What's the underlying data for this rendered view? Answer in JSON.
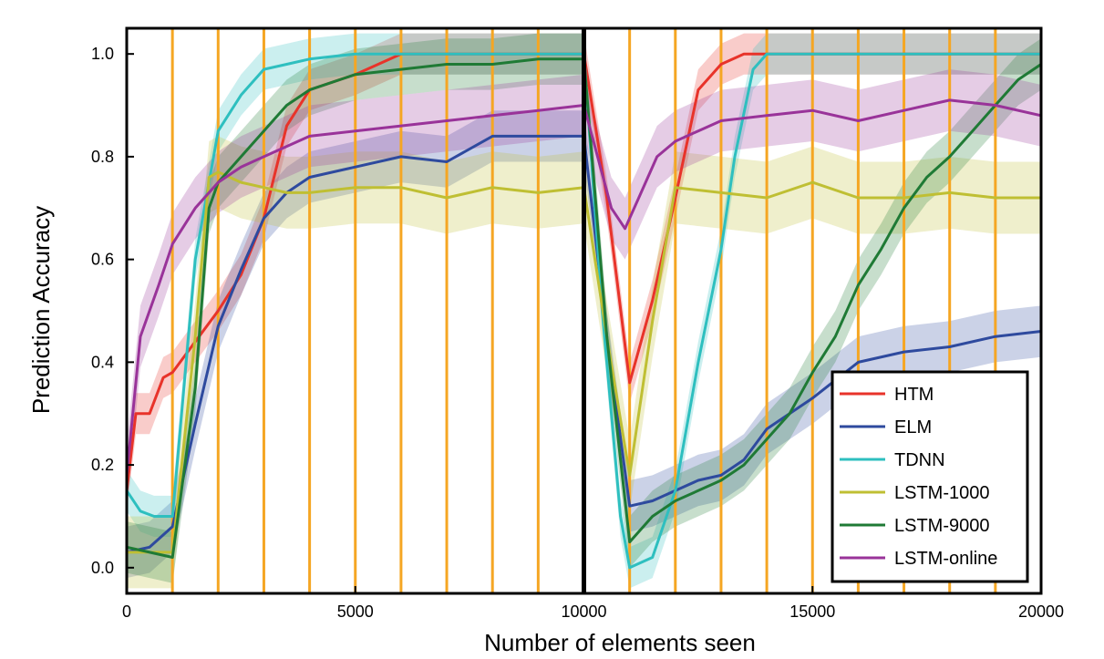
{
  "chart_data": {
    "type": "line",
    "title": "",
    "xlabel": "Number of elements seen",
    "ylabel": "Prediction Accuracy",
    "xlim": [
      0,
      20000
    ],
    "ylim": [
      -0.05,
      1.05
    ],
    "x_ticks": [
      "0",
      "5000",
      "10000",
      "15000",
      "20000"
    ],
    "y_ticks": [
      "0.0",
      "0.2",
      "0.4",
      "0.6",
      "0.8",
      "1.0"
    ],
    "grid": false,
    "legend_position": "lower-right",
    "vertical_markers": [
      1000,
      2000,
      3000,
      4000,
      5000,
      6000,
      7000,
      8000,
      9000,
      11000,
      12000,
      13000,
      14000,
      15000,
      16000,
      17000,
      18000,
      19000
    ],
    "vertical_marker_color": "#f5a623",
    "divider_x": 10000,
    "series": [
      {
        "name": "HTM",
        "color": "#e8332a",
        "x": [
          0,
          200,
          500,
          800,
          1000,
          1500,
          2000,
          2500,
          3000,
          3500,
          4000,
          5000,
          6000,
          7000,
          8000,
          9000,
          10000,
          10500,
          11000,
          11500,
          12000,
          12500,
          13000,
          13500,
          14000,
          15000,
          16000,
          17000,
          18000,
          19000,
          20000
        ],
        "values": [
          0.15,
          0.3,
          0.3,
          0.37,
          0.38,
          0.44,
          0.5,
          0.57,
          0.68,
          0.86,
          0.93,
          0.96,
          1.0,
          1.0,
          1.0,
          1.0,
          1.0,
          0.72,
          0.36,
          0.52,
          0.72,
          0.93,
          0.98,
          1.0,
          1.0,
          1.0,
          1.0,
          1.0,
          1.0,
          1.0,
          1.0
        ],
        "band": 0.04
      },
      {
        "name": "ELM",
        "color": "#2e4a9e",
        "x": [
          0,
          500,
          1000,
          1500,
          2000,
          2500,
          3000,
          3500,
          4000,
          5000,
          6000,
          7000,
          8000,
          9000,
          10000,
          10500,
          11000,
          11500,
          12000,
          12500,
          13000,
          13500,
          14000,
          15000,
          16000,
          17000,
          18000,
          19000,
          20000
        ],
        "values": [
          0.03,
          0.04,
          0.08,
          0.28,
          0.47,
          0.58,
          0.68,
          0.73,
          0.76,
          0.78,
          0.8,
          0.79,
          0.84,
          0.84,
          0.84,
          0.45,
          0.12,
          0.13,
          0.15,
          0.17,
          0.18,
          0.21,
          0.27,
          0.33,
          0.4,
          0.42,
          0.43,
          0.45,
          0.46
        ],
        "band": 0.05
      },
      {
        "name": "TDNN",
        "color": "#2ebfbf",
        "x": [
          0,
          300,
          600,
          1000,
          1200,
          1500,
          2000,
          2500,
          3000,
          3500,
          4000,
          5000,
          6000,
          7000,
          8000,
          9000,
          10000,
          10400,
          10800,
          11000,
          11500,
          12000,
          12500,
          13000,
          13300,
          13700,
          14000,
          15000,
          16000,
          17000,
          18000,
          19000,
          20000
        ],
        "values": [
          0.15,
          0.11,
          0.1,
          0.1,
          0.3,
          0.6,
          0.85,
          0.92,
          0.97,
          0.98,
          0.99,
          1.0,
          1.0,
          1.0,
          1.0,
          1.0,
          1.0,
          0.5,
          0.1,
          0.0,
          0.02,
          0.15,
          0.4,
          0.62,
          0.8,
          0.97,
          1.0,
          1.0,
          1.0,
          1.0,
          1.0,
          1.0,
          1.0
        ],
        "band": 0.04
      },
      {
        "name": "LSTM-1000",
        "color": "#bfbf33",
        "x": [
          0,
          500,
          1000,
          1500,
          1800,
          2000,
          2500,
          3000,
          3500,
          4000,
          5000,
          6000,
          7000,
          8000,
          9000,
          10000,
          10500,
          11000,
          11500,
          12000,
          13000,
          14000,
          15000,
          16000,
          17000,
          18000,
          19000,
          20000
        ],
        "values": [
          0.03,
          0.03,
          0.03,
          0.45,
          0.76,
          0.77,
          0.75,
          0.74,
          0.73,
          0.73,
          0.74,
          0.74,
          0.72,
          0.74,
          0.73,
          0.74,
          0.45,
          0.18,
          0.48,
          0.74,
          0.73,
          0.72,
          0.75,
          0.72,
          0.72,
          0.73,
          0.72,
          0.72
        ],
        "band": 0.07
      },
      {
        "name": "LSTM-9000",
        "color": "#1f7a35",
        "x": [
          0,
          500,
          1000,
          1500,
          1800,
          2000,
          2500,
          3000,
          3500,
          4000,
          5000,
          6000,
          7000,
          8000,
          9000,
          10000,
          10500,
          11000,
          11500,
          12000,
          12500,
          13000,
          13500,
          14000,
          14500,
          15000,
          15500,
          16000,
          16500,
          17000,
          17500,
          18000,
          18500,
          19000,
          19500,
          20000
        ],
        "values": [
          0.04,
          0.03,
          0.02,
          0.35,
          0.7,
          0.75,
          0.8,
          0.85,
          0.9,
          0.93,
          0.96,
          0.97,
          0.98,
          0.98,
          0.99,
          0.99,
          0.45,
          0.05,
          0.1,
          0.13,
          0.15,
          0.17,
          0.2,
          0.25,
          0.3,
          0.38,
          0.45,
          0.55,
          0.62,
          0.7,
          0.76,
          0.8,
          0.85,
          0.9,
          0.95,
          0.98
        ],
        "band": 0.05
      },
      {
        "name": "LSTM-online",
        "color": "#993399",
        "x": [
          0,
          300,
          700,
          1000,
          1500,
          2000,
          2500,
          3000,
          3500,
          4000,
          5000,
          6000,
          7000,
          8000,
          9000,
          10000,
          10300,
          10600,
          10900,
          11200,
          11600,
          12000,
          12500,
          13000,
          14000,
          15000,
          16000,
          17000,
          18000,
          19000,
          20000
        ],
        "values": [
          0.18,
          0.45,
          0.55,
          0.63,
          0.7,
          0.75,
          0.78,
          0.8,
          0.82,
          0.84,
          0.85,
          0.86,
          0.87,
          0.88,
          0.89,
          0.9,
          0.8,
          0.7,
          0.66,
          0.72,
          0.8,
          0.83,
          0.85,
          0.87,
          0.88,
          0.89,
          0.87,
          0.89,
          0.91,
          0.9,
          0.88
        ],
        "band": 0.06
      }
    ]
  }
}
